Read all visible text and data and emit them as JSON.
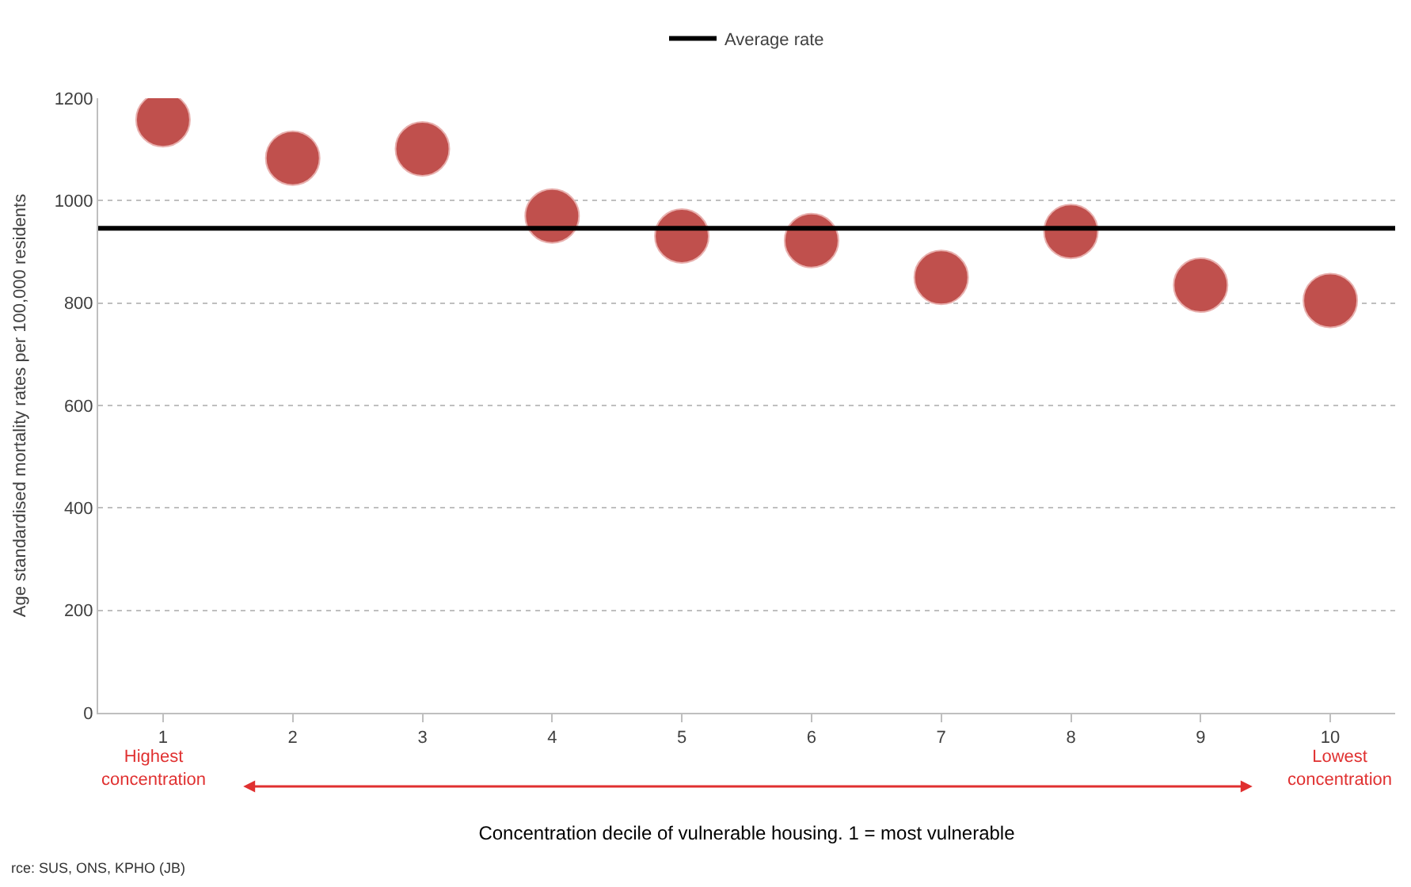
{
  "chart_data": {
    "type": "scatter",
    "xlabel": "Concentration decile of vulnerable housing. 1 = most vulnerable",
    "ylabel": "Age standardised mortality rates per 100,000 residents",
    "categories": [
      "1",
      "2",
      "3",
      "4",
      "5",
      "6",
      "7",
      "8",
      "9",
      "10"
    ],
    "series": [
      {
        "color": "#c0504d",
        "values": [
          1158,
          1083,
          1101,
          970,
          931,
          922,
          850,
          940,
          835,
          805
        ]
      }
    ],
    "ref_lines": [
      {
        "axis": "y",
        "value": 946,
        "label": "Average rate",
        "color": "#000000",
        "line_style": "solid"
      }
    ],
    "annotations": [
      "Highest\nconcentration",
      "Lowest\nconcentration",
      "rce: SUS, ONS, KPHO (JB)"
    ],
    "ylim": [
      0,
      1200
    ],
    "yticks": [
      0,
      200,
      400,
      600,
      800,
      1000,
      1200
    ],
    "grid": "y",
    "legend": "top",
    "marker": "circle"
  }
}
